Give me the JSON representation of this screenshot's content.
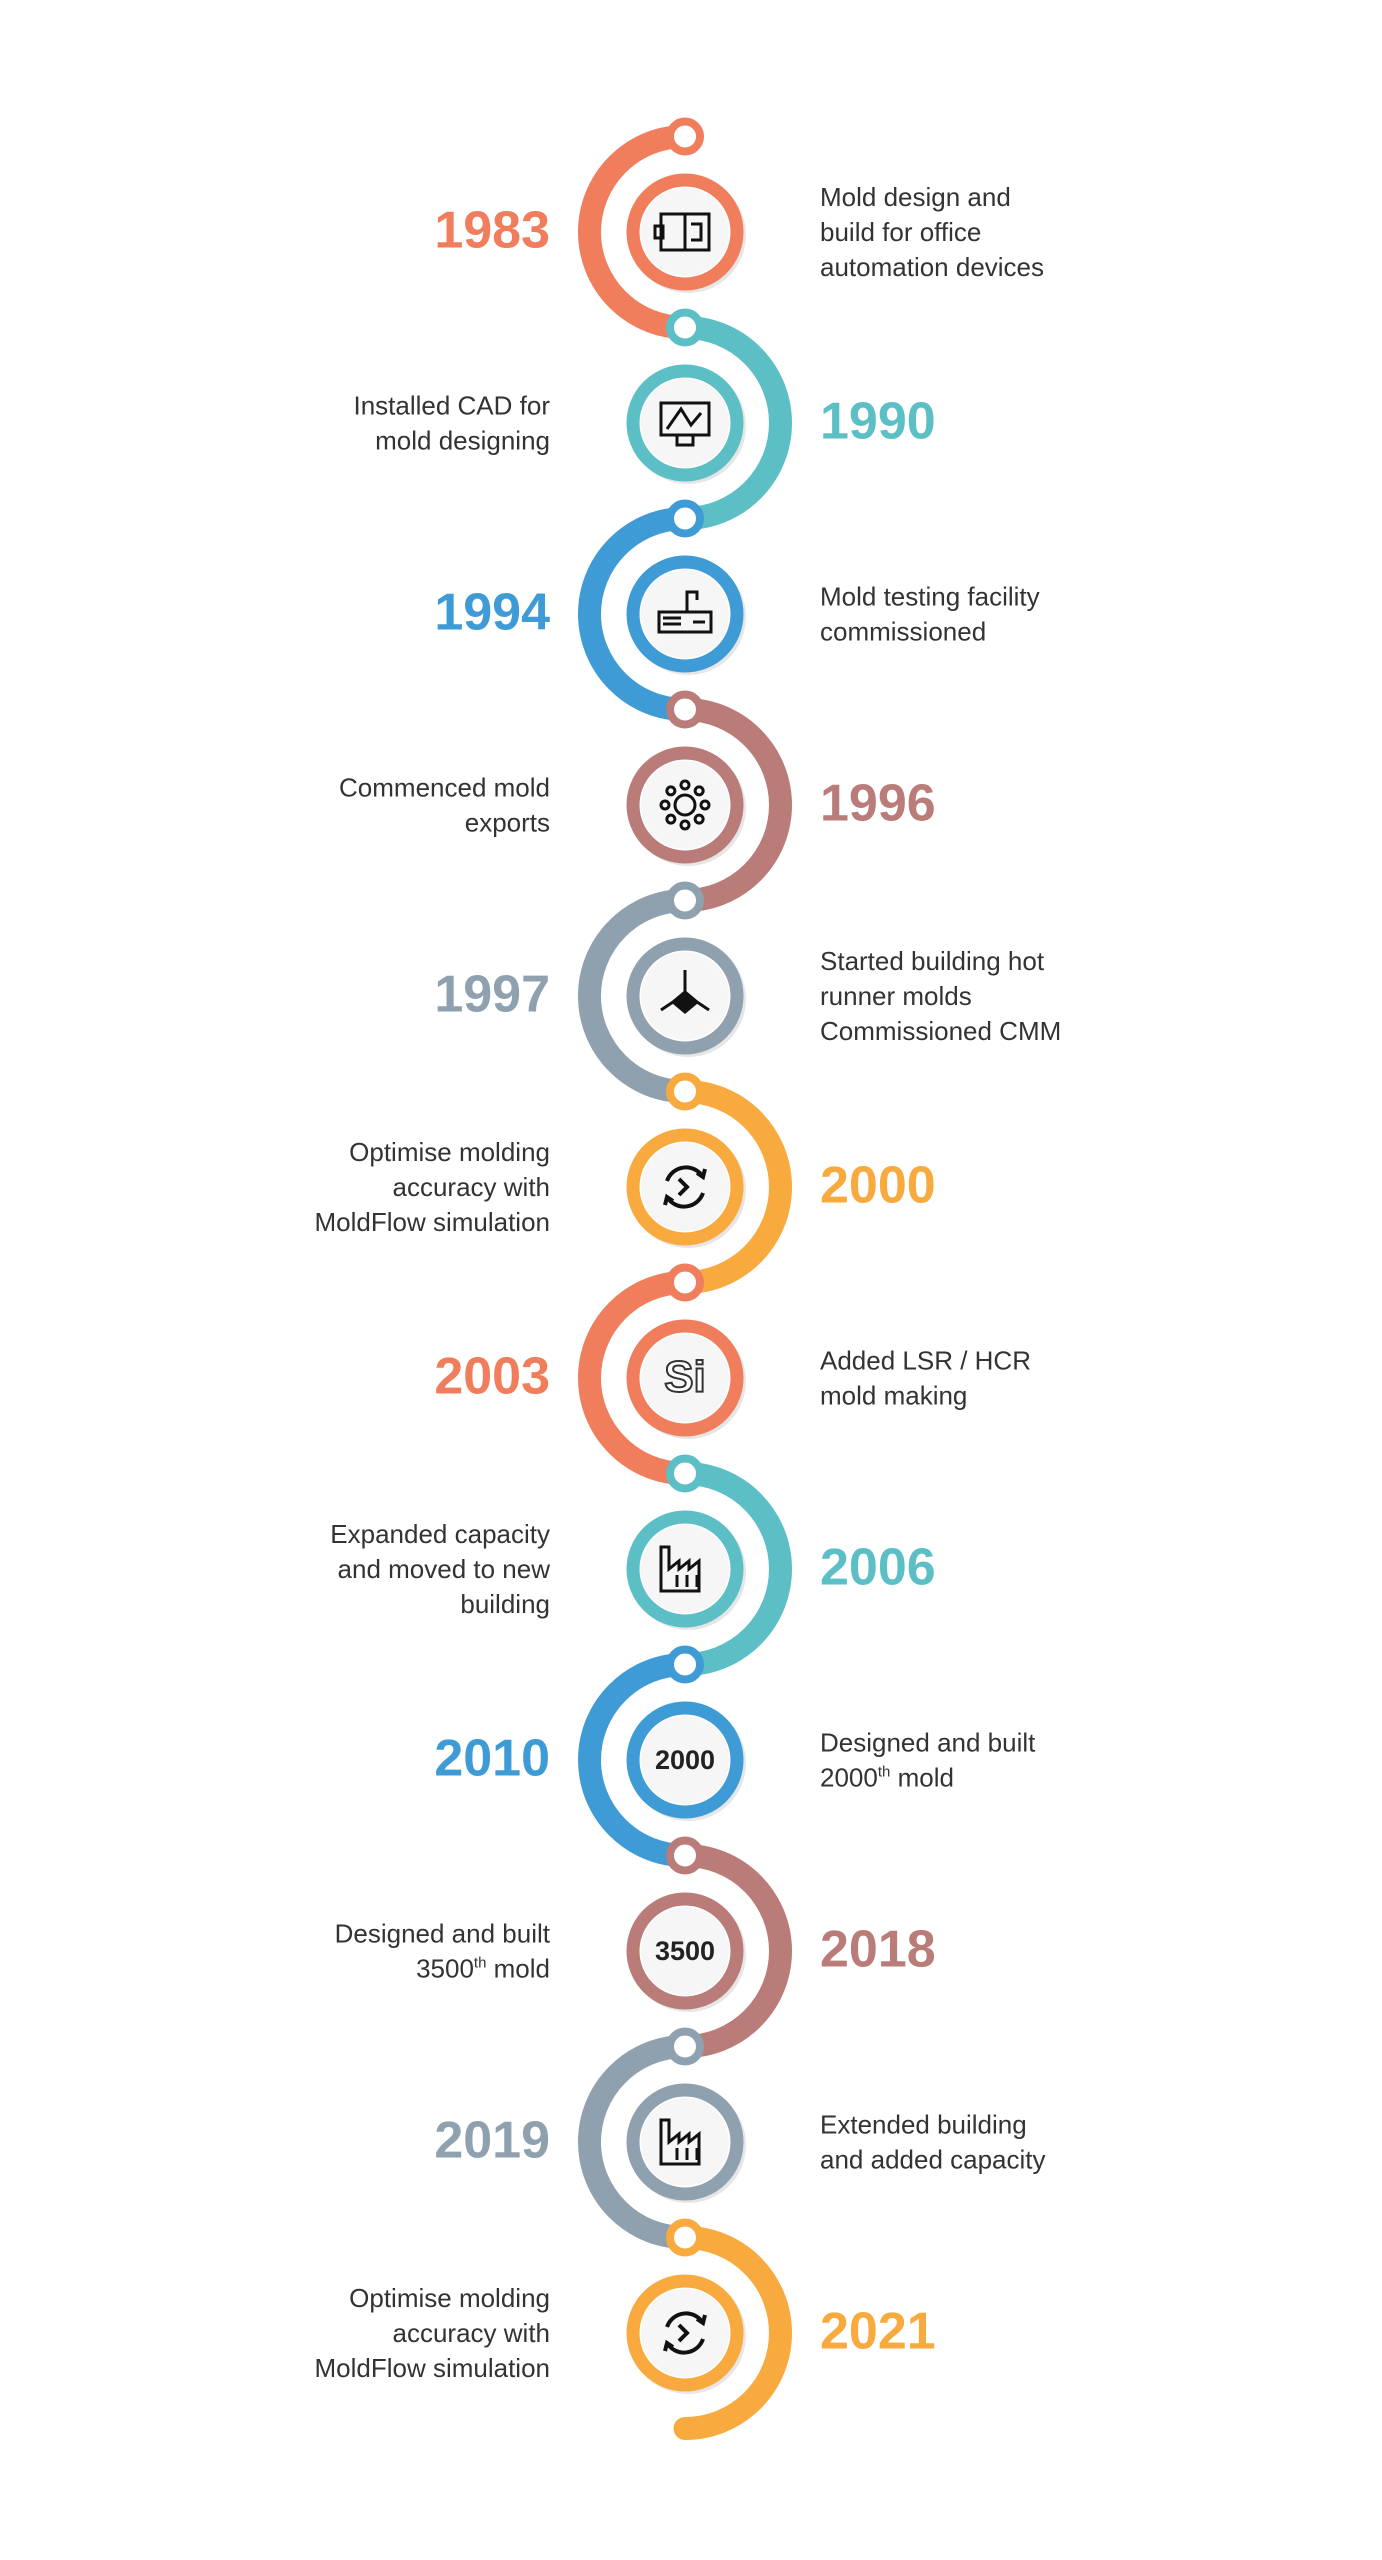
{
  "milestones": [
    {
      "year": "1983",
      "color": "#f07d5c",
      "side": "left",
      "icon": "mold",
      "description": [
        "Mold design and",
        "build for office",
        "automation devices"
      ]
    },
    {
      "year": "1990",
      "color": "#5dbfc6",
      "side": "right",
      "icon": "cad",
      "description": [
        "Installed CAD for",
        "mold designing"
      ]
    },
    {
      "year": "1994",
      "color": "#3f9bd5",
      "side": "left",
      "icon": "press",
      "description": [
        "Mold testing facility",
        "commissioned"
      ]
    },
    {
      "year": "1996",
      "color": "#b97c79",
      "side": "right",
      "icon": "gear",
      "description": [
        "Commenced mold",
        "exports"
      ]
    },
    {
      "year": "1997",
      "color": "#8fa0af",
      "side": "left",
      "icon": "cube",
      "description": [
        "Started building hot",
        "runner molds",
        "Commissioned CMM"
      ]
    },
    {
      "year": "2000",
      "color": "#f8aa3e",
      "side": "right",
      "icon": "cycle",
      "description": [
        "Optimise molding",
        "accuracy with",
        "MoldFlow simulation"
      ]
    },
    {
      "year": "2003",
      "color": "#f07d5c",
      "side": "left",
      "icon_text": "Si",
      "description": [
        "Added LSR / HCR",
        "mold making"
      ]
    },
    {
      "year": "2006",
      "color": "#5dbfc6",
      "side": "right",
      "icon": "factory",
      "description": [
        "Expanded capacity",
        "and moved to new",
        "building"
      ]
    },
    {
      "year": "2010",
      "color": "#3f9bd5",
      "side": "left",
      "icon_text": "2000",
      "description": [
        "Designed and built",
        {
          "before": "2000",
          "sup": "th",
          "after": " mold"
        }
      ]
    },
    {
      "year": "2018",
      "color": "#b97c79",
      "side": "right",
      "icon_text": "3500",
      "description": [
        "Designed and built",
        {
          "before": "3500",
          "sup": "th",
          "after": " mold"
        }
      ]
    },
    {
      "year": "2019",
      "color": "#8fa0af",
      "side": "left",
      "icon": "factory",
      "description": [
        "Extended building",
        "and added capacity"
      ]
    },
    {
      "year": "2021",
      "color": "#f8aa3e",
      "side": "right",
      "icon": "cycle",
      "description": [
        "Optimise molding",
        "accuracy with",
        "MoldFlow simulation"
      ]
    }
  ]
}
